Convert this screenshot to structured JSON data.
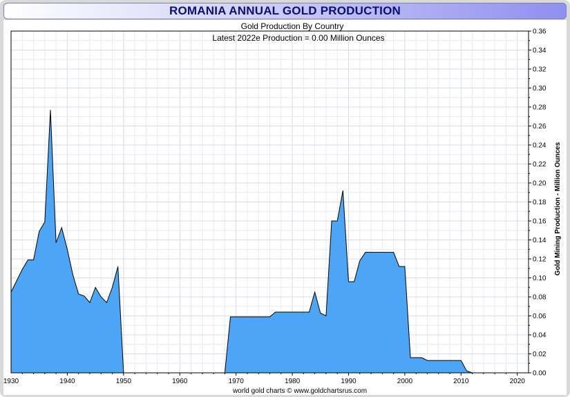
{
  "title": "ROMANIA ANNUAL GOLD PRODUCTION",
  "subtitle": "Gold Production By Country",
  "latest": "Latest 2022e Production = 0.00 Million Ounces",
  "credit": "world gold charts © www.goldchartsrus.com",
  "chart_data": {
    "type": "area",
    "ylabel": "Gold Mining Production - Million Ounces",
    "xlim": [
      1930,
      2022
    ],
    "ylim": [
      0,
      0.36
    ],
    "x_ticks": [
      1930,
      1940,
      1950,
      1960,
      1970,
      1980,
      1990,
      2000,
      2010,
      2020
    ],
    "y_ticks": [
      "0.00",
      "0.02",
      "0.04",
      "0.06",
      "0.08",
      "0.10",
      "0.12",
      "0.14",
      "0.16",
      "0.18",
      "0.20",
      "0.22",
      "0.24",
      "0.26",
      "0.28",
      "0.30",
      "0.32",
      "0.34",
      "0.36"
    ],
    "y_axis_position": "right",
    "grid": true,
    "fill_color": "#4da6f5",
    "line_color": "#000000",
    "series": [
      {
        "x": [
          1930,
          1931,
          1932,
          1933,
          1934,
          1935,
          1936,
          1937,
          1938,
          1939,
          1940,
          1941,
          1942,
          1943,
          1944,
          1945,
          1946,
          1947,
          1948,
          1949,
          1950,
          1951,
          1952,
          1953,
          1954,
          1955,
          1956,
          1957,
          1958,
          1959,
          1960,
          1961,
          1962,
          1963,
          1964,
          1965,
          1966,
          1967,
          1968,
          1969,
          1970,
          1971,
          1972,
          1973,
          1974,
          1975,
          1976,
          1977,
          1978,
          1979,
          1980,
          1981,
          1982,
          1983,
          1984,
          1985,
          1986,
          1987,
          1988,
          1989,
          1990,
          1991,
          1992,
          1993,
          1994,
          1995,
          1996,
          1997,
          1998,
          1999,
          2000,
          2001,
          2002,
          2003,
          2004,
          2005,
          2006,
          2007,
          2008,
          2009,
          2010,
          2011,
          2012,
          2013,
          2014,
          2015,
          2016,
          2017,
          2018,
          2019,
          2020,
          2021,
          2022
        ],
        "values": [
          0.085,
          0.097,
          0.109,
          0.119,
          0.119,
          0.149,
          0.159,
          0.277,
          0.137,
          0.153,
          0.13,
          0.103,
          0.083,
          0.081,
          0.074,
          0.09,
          0.08,
          0.074,
          0.09,
          0.112,
          0,
          0,
          0,
          0,
          0,
          0,
          0,
          0,
          0,
          0,
          0,
          0,
          0,
          0,
          0,
          0,
          0,
          0,
          0,
          0.059,
          0.059,
          0.059,
          0.059,
          0.059,
          0.059,
          0.059,
          0.059,
          0.064,
          0.064,
          0.064,
          0.064,
          0.064,
          0.064,
          0.064,
          0.085,
          0.063,
          0.06,
          0.16,
          0.16,
          0.192,
          0.096,
          0.096,
          0.118,
          0.127,
          0.127,
          0.127,
          0.127,
          0.127,
          0.127,
          0.112,
          0.112,
          0.016,
          0.016,
          0.016,
          0.013,
          0.013,
          0.013,
          0.013,
          0.013,
          0.013,
          0.013,
          0.002,
          0,
          0,
          0,
          0,
          0,
          0,
          0,
          0,
          0,
          0,
          0
        ]
      }
    ]
  }
}
